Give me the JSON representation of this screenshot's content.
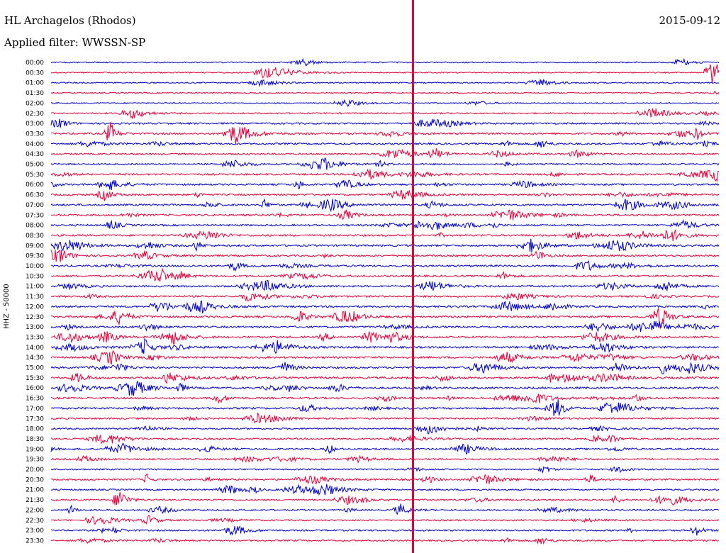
{
  "header": {
    "station": "HL Archagelos (Rhodos)",
    "filter": "Applied filter: WWSSN-SP",
    "date": "2015-09-12"
  },
  "chart_data": {
    "type": "line",
    "ylabel": "HHZ - 50000",
    "row_labels": [
      "00:00",
      "00:30",
      "01:00",
      "01:30",
      "02:00",
      "02:30",
      "03:00",
      "03:30",
      "04:00",
      "04:30",
      "05:00",
      "05:30",
      "06:00",
      "06:30",
      "07:00",
      "07:30",
      "08:00",
      "08:30",
      "09:00",
      "09:30",
      "10:00",
      "10:30",
      "11:00",
      "11:30",
      "12:00",
      "12:30",
      "13:00",
      "13:30",
      "14:00",
      "14:30",
      "15:00",
      "15:30",
      "16:00",
      "16:30",
      "17:00",
      "17:30",
      "18:00",
      "18:30",
      "19:00",
      "19:30",
      "20:00",
      "20:30",
      "21:00",
      "21:30",
      "22:00",
      "22:30",
      "23:00",
      "23:30"
    ],
    "colors": [
      "#0000cc",
      "#e8003a"
    ],
    "marker_color": "#e8003a",
    "row_activity": [
      0.15,
      0.12,
      0.12,
      0.08,
      0.12,
      0.22,
      0.35,
      0.35,
      0.38,
      0.3,
      0.3,
      0.38,
      0.35,
      0.35,
      0.4,
      0.38,
      0.4,
      0.38,
      0.4,
      0.38,
      0.38,
      0.4,
      0.38,
      0.38,
      0.42,
      0.42,
      0.4,
      0.45,
      0.45,
      0.42,
      0.42,
      0.45,
      0.45,
      0.42,
      0.42,
      0.3,
      0.25,
      0.28,
      0.35,
      0.28,
      0.22,
      0.35,
      0.25,
      0.28,
      0.28,
      0.25,
      0.3,
      0.25
    ]
  }
}
